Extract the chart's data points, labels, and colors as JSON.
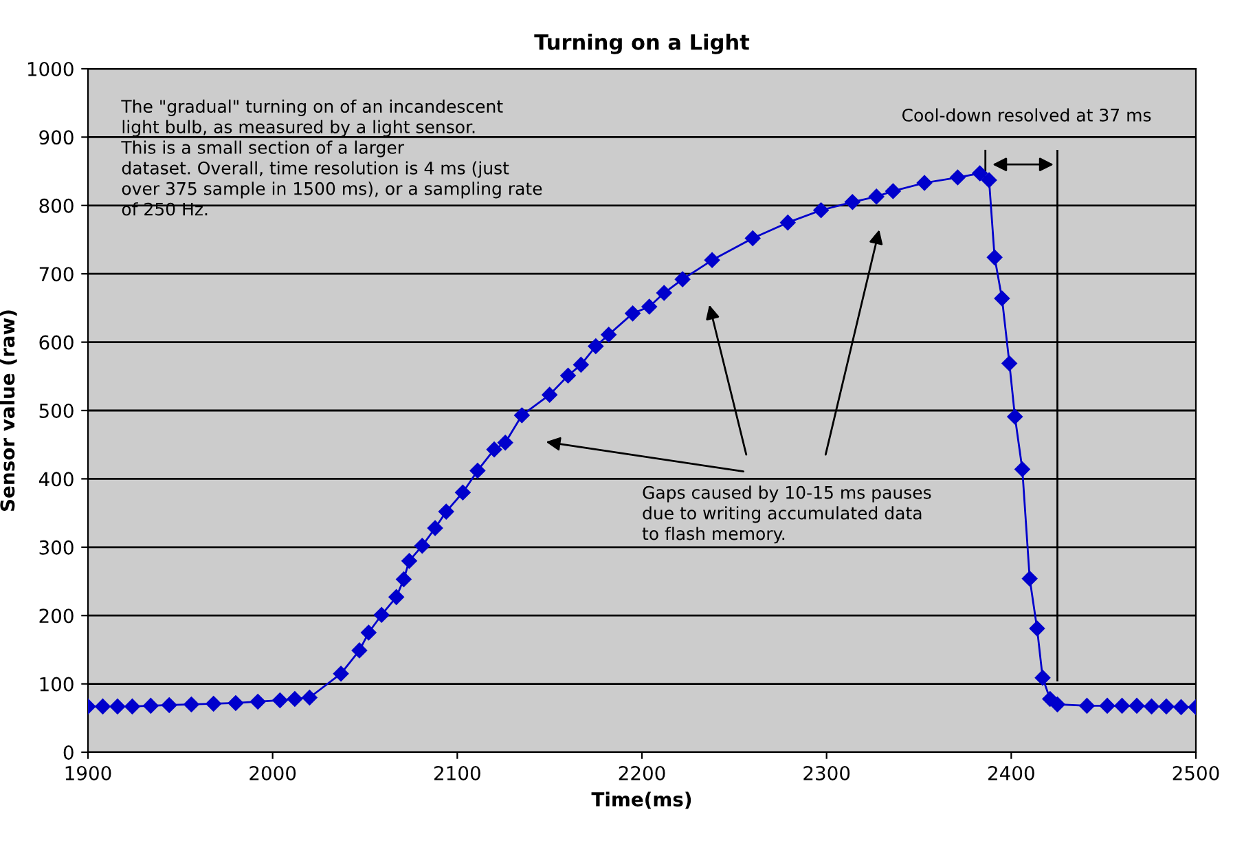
{
  "chart_data": {
    "type": "line",
    "title": "Turning on a Light",
    "xlabel": "Time(ms)",
    "ylabel": "Sensor value (raw)",
    "x": [
      1900,
      1908,
      1916,
      1924,
      1934,
      1944,
      1956,
      1968,
      1980,
      1992,
      2004,
      2012,
      2020,
      2037,
      2047,
      2052,
      2059,
      2067,
      2071,
      2074,
      2081,
      2088,
      2094,
      2103,
      2111,
      2120,
      2126,
      2135,
      2150,
      2160,
      2167,
      2175,
      2182,
      2195,
      2204,
      2212,
      2222,
      2238,
      2260,
      2279,
      2297,
      2314,
      2327,
      2336,
      2353,
      2371,
      2383,
      2388,
      2391,
      2395,
      2399,
      2402,
      2406,
      2410,
      2414,
      2417,
      2421,
      2425,
      2441,
      2452,
      2460,
      2468,
      2476,
      2484,
      2492,
      2500
    ],
    "series": [
      {
        "color": "#0000cc",
        "values": [
          67,
          67,
          67,
          67,
          68,
          69,
          70,
          71,
          72,
          74,
          76,
          78,
          80,
          115,
          149,
          175,
          201,
          227,
          253,
          280,
          302,
          328,
          352,
          380,
          412,
          443,
          453,
          493,
          523,
          551,
          567,
          594,
          611,
          642,
          652,
          672,
          692,
          720,
          752,
          775,
          793,
          805,
          813,
          821,
          833,
          841,
          847,
          837,
          724,
          664,
          569,
          491,
          414,
          254,
          181,
          109,
          78,
          70,
          68,
          68,
          68,
          68,
          67,
          67,
          66,
          66
        ]
      }
    ],
    "xlim": [
      1900,
      2500
    ],
    "xticks": [
      1900,
      2000,
      2100,
      2200,
      2300,
      2400,
      2500
    ],
    "ylim": [
      0,
      1000
    ],
    "yticks": [
      0,
      100,
      200,
      300,
      400,
      500,
      600,
      700,
      800,
      900,
      1000
    ],
    "ref_lines": [
      {
        "axis": "x",
        "value": 2425,
        "color": "#000000"
      }
    ],
    "grid": "y",
    "marker": "diamond",
    "line_style": "solid",
    "annotations": [
      "The \"gradual\" turning on of an incandescent\nlight bulb, as measured by a light sensor.\nThis is a small section of a larger\ndataset. Overall, time resolution is 4 ms (just\nover 375 sample in 1500 ms), or a sampling rate\nof 250 Hz.",
      "Cool-down resolved at 37 ms",
      "Gaps caused by 10-15 ms pauses\ndue to writing accumulated data\nto flash memory."
    ]
  }
}
